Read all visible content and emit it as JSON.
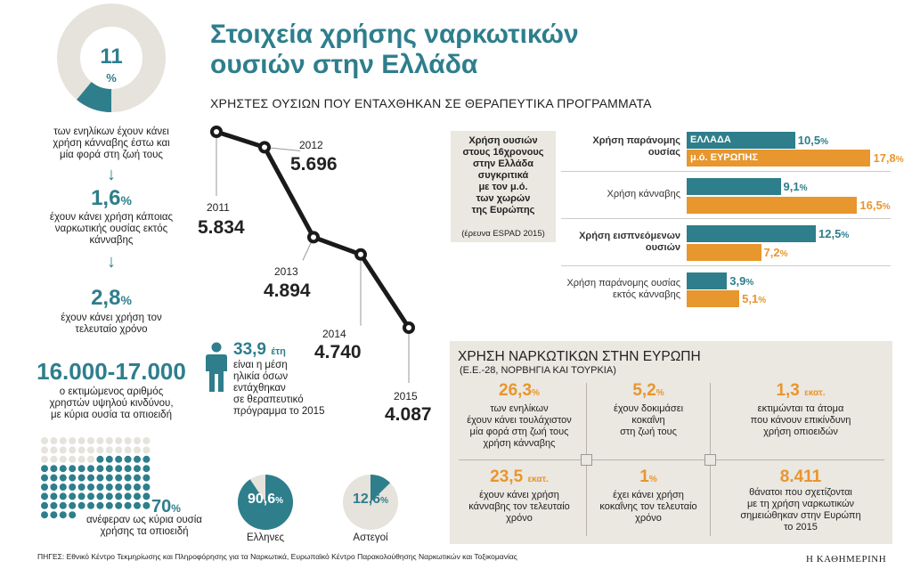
{
  "title": "Στοιχεία χρήσης ναρκωτικών ουσιών στην Ελλάδα",
  "title_line1": "Στοιχεία χρήσης ναρκωτικών",
  "title_line2": "ουσιών στην Ελλάδα",
  "colors": {
    "teal": "#2e7e8c",
    "orange": "#e8962e",
    "light": "#e6e2dc",
    "panel": "#ebe7e1"
  },
  "left": {
    "donut_value": "11",
    "donut_unit": "%",
    "donut_fraction": 0.11,
    "s1": [
      "των ενηλίκων έχουν κάνει",
      "χρήση κάνναβης έστω και",
      "μία φορά στη ζωή τους"
    ],
    "arrow": "↓",
    "v2": "1,6",
    "v2_unit": "%",
    "s2": [
      "έχουν κάνει χρήση κάποιας",
      "ναρκωτικής ουσίας εκτός",
      "κάνναβης"
    ],
    "v3": "2,8",
    "v3_unit": "%",
    "s3": [
      "έχουν κάνει χρήση τον",
      "τελευταίο χρόνο"
    ],
    "v4": "16.000-17.000",
    "s4": [
      "ο εκτιμώμενος αριθμός",
      "χρηστών υψηλού κινδύνου,",
      "με κύρια ουσία τα οπιοειδή"
    ],
    "dots_total": 100,
    "dots_filled": 70,
    "v5": "70",
    "v5_unit": "%",
    "s5": [
      "ανέφεραν ως κύρια ουσία",
      "χρήσης τα οπιοειδή"
    ]
  },
  "line_chart": {
    "subtitle": "ΧΡΗΣΤΕΣ ΟΥΣΙΩΝ ΠΟΥ ΕΝΤΑΧΘΗΚΑΝ ΣΕ ΘΕΡΑΠΕΥΤΙΚΑ ΠΡΟΓΡΑΜΜΑΤΑ",
    "years": [
      "2011",
      "2012",
      "2013",
      "2014",
      "2015"
    ],
    "labels": [
      "5.834",
      "5.696",
      "4.894",
      "4.740",
      "4.087"
    ]
  },
  "chart_data": {
    "type": "line",
    "title": "ΧΡΗΣΤΕΣ ΟΥΣΙΩΝ ΠΟΥ ΕΝΤΑΧΘΗΚΑΝ ΣΕ ΘΕΡΑΠΕΥΤΙΚΑ ΠΡΟΓΡΑΜΜΑΤΑ",
    "x": [
      2011,
      2012,
      2013,
      2014,
      2015
    ],
    "values": [
      5834,
      5696,
      4894,
      4740,
      4087
    ],
    "ylim": [
      3800,
      6000
    ]
  },
  "age": {
    "value": "33,9",
    "unit": "έτη",
    "text": [
      "είναι η μέση",
      "ηλικία όσων",
      "εντάχθηκαν",
      "σε θεραπευτικό",
      "πρόγραμμα το 2015"
    ]
  },
  "pies": [
    {
      "value": "90,6",
      "unit": "%",
      "fraction": 0.906,
      "label": "Ελληνες"
    },
    {
      "value": "12,6",
      "unit": "%",
      "fraction": 0.126,
      "label": "Αστεγοί"
    }
  ],
  "bars": {
    "box_title": [
      "Χρήση ουσιών",
      "στους 16χρονους",
      "στην Ελλάδα",
      "συγκριτικά",
      "με τον μ.ό.",
      "των χωρών",
      "της Ευρώπης"
    ],
    "box_note": "(έρευνα ESPAD 2015)",
    "legend_gr": "ΕΛΛΑΔΑ",
    "legend_eu": "μ.ό. ΕΥΡΩΠΗΣ",
    "groups": [
      {
        "cat": [
          "Χρήση παράνομης",
          "ουσίας"
        ],
        "bold": true,
        "gr": 10.5,
        "eu": 17.8,
        "gr_label": "10,5",
        "eu_label": "17,8"
      },
      {
        "cat": [
          "Χρήση κάνναβης"
        ],
        "bold": false,
        "gr": 9.1,
        "eu": 16.5,
        "gr_label": "9,1",
        "eu_label": "16,5"
      },
      {
        "cat": [
          "Χρήση εισπνεόμενων",
          "ουσιών"
        ],
        "bold": true,
        "gr": 12.5,
        "eu": 7.2,
        "gr_label": "12,5",
        "eu_label": "7,2"
      },
      {
        "cat": [
          "Χρήση παράνομης ουσίας",
          "εκτός κάνναβης"
        ],
        "bold": false,
        "gr": 3.9,
        "eu": 5.1,
        "gr_label": "3,9",
        "eu_label": "5,1"
      }
    ],
    "pct": "%"
  },
  "europe": {
    "title": "ΧΡΗΣΗ ΝΑΡΚΩΤΙΚΩΝ ΣΤΗΝ ΕΥΡΩΠΗ",
    "subtitle": "(Ε.Ε.-28, ΝΟΡΒΗΓΙΑ ΚΑΙ ΤΟΥΡΚΙΑ)",
    "cells": [
      {
        "num": "26,3",
        "unit": "%",
        "text": [
          "των ενηλίκων",
          "έχουν κάνει τουλάχιστον",
          "μία φορά στη ζωή τους",
          "χρήση κάνναβης"
        ]
      },
      {
        "num": "5,2",
        "unit": "%",
        "text": [
          "έχουν δοκιμάσει",
          "κοκαΐνη",
          "στη ζωή τους"
        ]
      },
      {
        "num": "1,3",
        "unit": "εκατ.",
        "text": [
          "εκτιμώνται τα άτομα",
          "που κάνουν επικίνδυνη",
          "χρήση οπιοειδών"
        ]
      },
      {
        "num": "23,5",
        "unit": "εκατ.",
        "text": [
          "έχουν κάνει χρήση",
          "κάνναβης τον τελευταίο",
          "χρόνο"
        ]
      },
      {
        "num": "1",
        "unit": "%",
        "text": [
          "έχει κάνει χρήση",
          "κοκαΐνης τον τελευταίο",
          "χρόνο"
        ]
      },
      {
        "num": "8.411",
        "unit": "",
        "text": [
          "θάνατοι που σχετίζονται",
          "με τη χρήση ναρκωτικών",
          "σημειώθηκαν στην Ευρώπη",
          "το 2015"
        ]
      }
    ]
  },
  "footer": {
    "sources": "ΠΗΓΕΣ: Εθνικό Κέντρο Τεκμηρίωσης και Πληροφόρησης για τα Ναρκωτικά, Ευρωπαϊκό Κέντρο Παρακολούθησης Ναρκωτικών και Τοξικομανίας",
    "brand": "Η ΚΑΘΗΜΕΡΙΝΗ"
  }
}
